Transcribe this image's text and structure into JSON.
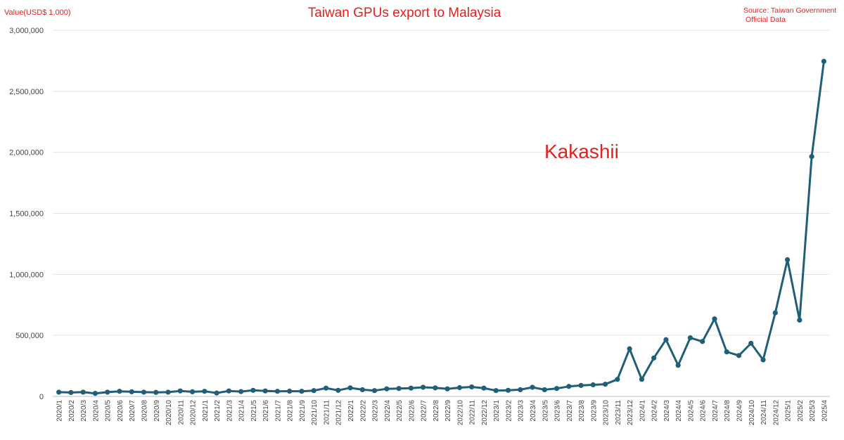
{
  "chart_data": {
    "type": "line",
    "title": "Taiwan GPUs export to Malaysia",
    "ylabel": "Value(USD$ 1,000)",
    "source_line1": "Source: Taiwan Government",
    "source_line2": "Official Data",
    "watermark": "Kakashii",
    "ylim": [
      0,
      3000000
    ],
    "y_ticks": [
      "0",
      "500,000",
      "1,000,000",
      "1,500,000",
      "2,000,000",
      "2,500,000",
      "3,000,000"
    ],
    "grid": true,
    "line_color": "#1f5f7a",
    "accent_color": "#e0231c",
    "categories": [
      "2020/1",
      "2020/2",
      "2020/3",
      "2020/4",
      "2020/5",
      "2020/6",
      "2020/7",
      "2020/8",
      "2020/9",
      "2020/10",
      "2020/11",
      "2020/12",
      "2021/1",
      "2021/2",
      "2021/3",
      "2021/4",
      "2021/5",
      "2021/6",
      "2021/7",
      "2021/8",
      "2021/9",
      "2021/10",
      "2021/11",
      "2021/12",
      "2022/1",
      "2022/2",
      "2022/3",
      "2022/4",
      "2022/5",
      "2022/6",
      "2022/7",
      "2022/8",
      "2022/9",
      "2022/10",
      "2022/11",
      "2022/12",
      "2023/1",
      "2023/2",
      "2023/3",
      "2023/4",
      "2023/5",
      "2023/6",
      "2023/7",
      "2023/8",
      "2023/9",
      "2023/10",
      "2023/11",
      "2023/12",
      "2024/1",
      "2024/2",
      "2024/3",
      "2024/4",
      "2024/5",
      "2024/6",
      "2024/7",
      "2024/8",
      "2024/9",
      "2024/10",
      "2024/11",
      "2024/12",
      "2025/1",
      "2025/2",
      "2025/3",
      "2025/4"
    ],
    "values": [
      35000,
      32000,
      35000,
      25000,
      35000,
      42000,
      38000,
      35000,
      33000,
      35000,
      45000,
      38000,
      42000,
      28000,
      45000,
      40000,
      50000,
      45000,
      42000,
      43000,
      42000,
      48000,
      68000,
      50000,
      70000,
      55000,
      48000,
      62000,
      65000,
      68000,
      75000,
      70000,
      62000,
      72000,
      78000,
      68000,
      48000,
      50000,
      55000,
      75000,
      55000,
      65000,
      82000,
      90000,
      95000,
      100000,
      140000,
      390000,
      140000,
      315000,
      465000,
      255000,
      480000,
      450000,
      635000,
      365000,
      335000,
      435000,
      300000,
      685000,
      1120000,
      625000,
      1965000,
      2745000
    ]
  }
}
